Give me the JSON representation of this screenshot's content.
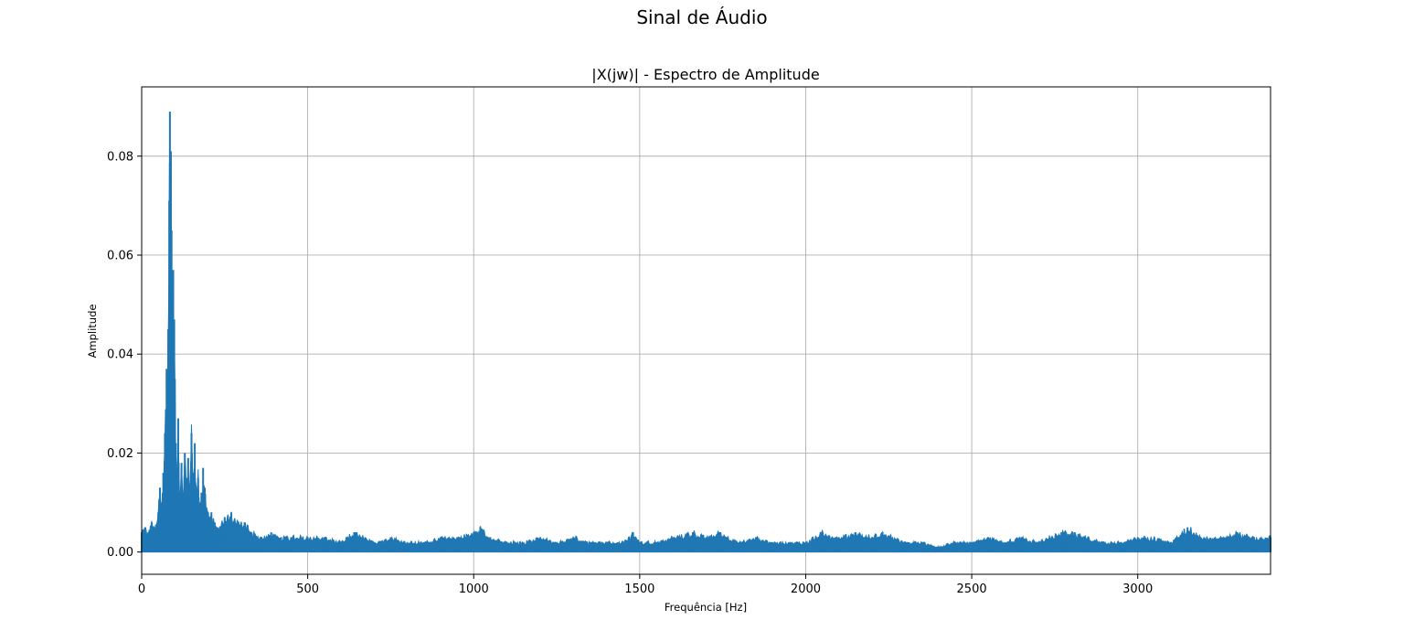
{
  "chart_data": {
    "type": "line",
    "suptitle": "Sinal de Áudio",
    "title": "|X(jw)| - Espectro de Amplitude",
    "xlabel": "Frequência [Hz]",
    "ylabel": "Amplitude",
    "xlim": [
      0,
      3400
    ],
    "ylim": [
      -0.0045,
      0.094
    ],
    "xticks": [
      0,
      500,
      1000,
      1500,
      2000,
      2500,
      3000
    ],
    "xtick_labels": [
      "0",
      "500",
      "1000",
      "1500",
      "2000",
      "2500",
      "3000"
    ],
    "yticks": [
      0.0,
      0.02,
      0.04,
      0.06,
      0.08
    ],
    "ytick_labels": [
      "0.00",
      "0.02",
      "0.04",
      "0.06",
      "0.08"
    ],
    "grid": true,
    "line_color": "#1f77b4",
    "series": [
      {
        "x": [
          0,
          10,
          20,
          30,
          40,
          50,
          55,
          60,
          65,
          70,
          75,
          78,
          80,
          83,
          85,
          88,
          90,
          93,
          95,
          98,
          100,
          103,
          105,
          110,
          115,
          120,
          125,
          130,
          135,
          140,
          145,
          150,
          155,
          160,
          165,
          170,
          175,
          180,
          185,
          190,
          195,
          200,
          210,
          220,
          230,
          250,
          270,
          290,
          310,
          330,
          360,
          390,
          420,
          450,
          500,
          550,
          600,
          640,
          700,
          750,
          800,
          850,
          900,
          950,
          1000,
          1020,
          1050,
          1100,
          1150,
          1200,
          1250,
          1300,
          1350,
          1400,
          1450,
          1480,
          1500,
          1550,
          1600,
          1660,
          1700,
          1740,
          1800,
          1850,
          1900,
          1950,
          2000,
          2050,
          2100,
          2150,
          2200,
          2230,
          2300,
          2350,
          2400,
          2450,
          2500,
          2550,
          2600,
          2650,
          2700,
          2770,
          2810,
          2850,
          2900,
          2950,
          3000,
          3050,
          3100,
          3150,
          3200,
          3250,
          3300,
          3350,
          3400
        ],
        "values": [
          0.004,
          0.005,
          0.004,
          0.006,
          0.005,
          0.008,
          0.013,
          0.01,
          0.016,
          0.024,
          0.037,
          0.028,
          0.045,
          0.071,
          0.089,
          0.081,
          0.065,
          0.052,
          0.057,
          0.047,
          0.035,
          0.022,
          0.017,
          0.027,
          0.012,
          0.018,
          0.011,
          0.02,
          0.015,
          0.019,
          0.013,
          0.024,
          0.016,
          0.022,
          0.013,
          0.015,
          0.01,
          0.012,
          0.017,
          0.013,
          0.009,
          0.008,
          0.008,
          0.006,
          0.005,
          0.007,
          0.008,
          0.006,
          0.006,
          0.004,
          0.003,
          0.004,
          0.003,
          0.003,
          0.003,
          0.003,
          0.002,
          0.004,
          0.002,
          0.003,
          0.002,
          0.002,
          0.003,
          0.003,
          0.004,
          0.005,
          0.003,
          0.002,
          0.002,
          0.003,
          0.002,
          0.003,
          0.002,
          0.002,
          0.002,
          0.004,
          0.002,
          0.002,
          0.003,
          0.004,
          0.003,
          0.004,
          0.002,
          0.003,
          0.002,
          0.002,
          0.002,
          0.004,
          0.003,
          0.004,
          0.003,
          0.004,
          0.002,
          0.002,
          0.001,
          0.002,
          0.002,
          0.003,
          0.002,
          0.003,
          0.002,
          0.004,
          0.004,
          0.003,
          0.002,
          0.002,
          0.003,
          0.003,
          0.002,
          0.005,
          0.003,
          0.003,
          0.004,
          0.003,
          0.003
        ]
      }
    ]
  }
}
